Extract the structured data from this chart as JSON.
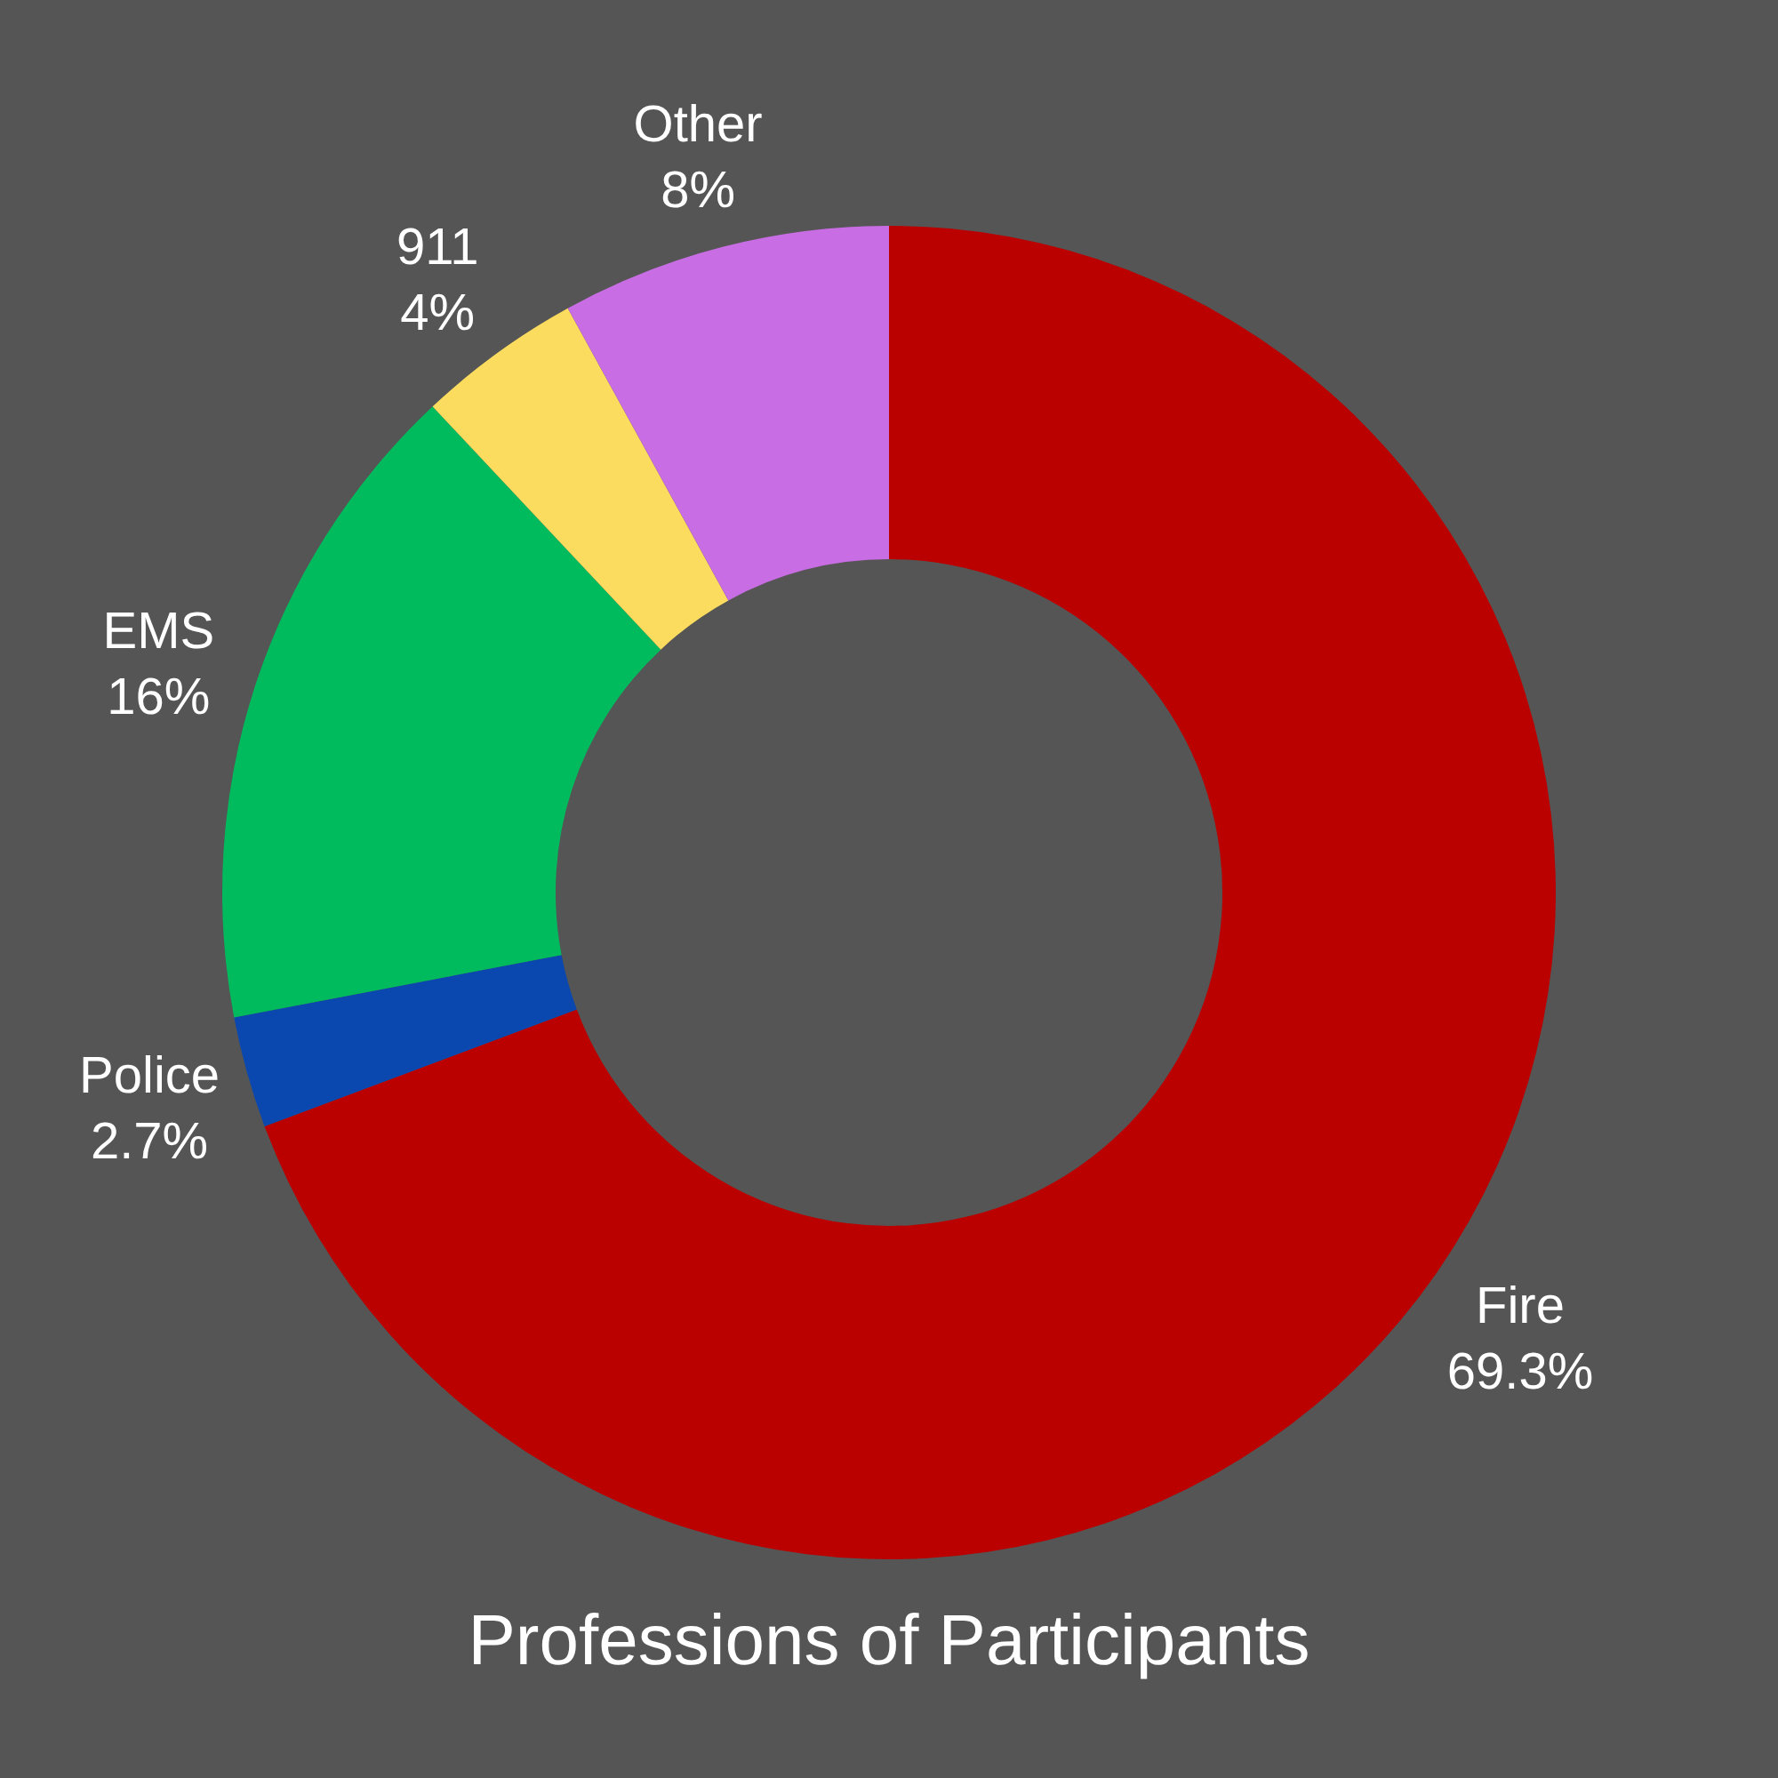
{
  "chart_data": {
    "type": "donut",
    "title": "Professions of Participants",
    "categories": [
      "Fire",
      "Police",
      "EMS",
      "911",
      "Other"
    ],
    "values": [
      69.3,
      2.7,
      16,
      4,
      8
    ],
    "colors": [
      "#bb0000",
      "#0a48b0",
      "#00bb5e",
      "#fcdc5e",
      "#c86de3"
    ],
    "value_labels": [
      "69.3%",
      "2.7%",
      "16%",
      "4%",
      "8%"
    ]
  }
}
